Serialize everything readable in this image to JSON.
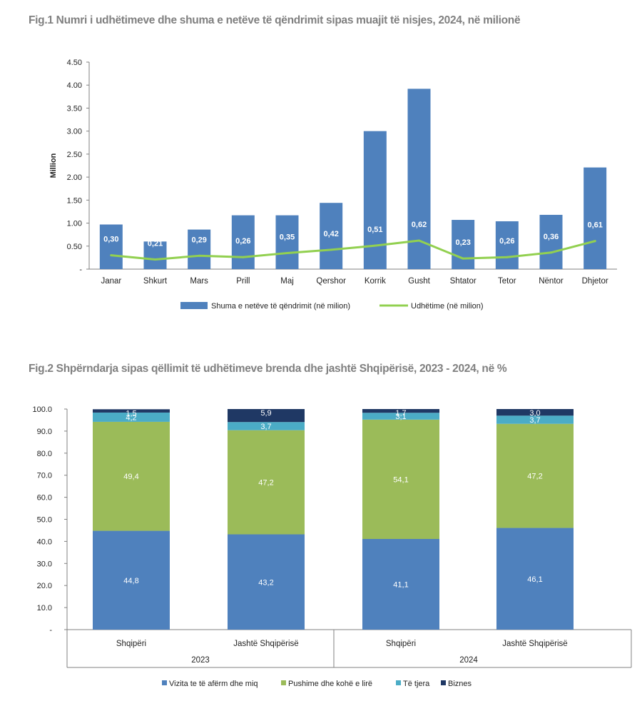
{
  "chart_data": [
    {
      "type": "bar",
      "title": "Fig.1 Numri i udhëtimeve dhe shuma e netëve të qëndrimit sipas muajit të nisjes, 2024, në milionë",
      "ylabel": "Million",
      "ylim": [
        0,
        4.5
      ],
      "yticks": [
        "-",
        "0.50",
        "1.00",
        "1.50",
        "2.00",
        "2.50",
        "3.00",
        "3.50",
        "4.00",
        "4.50"
      ],
      "categories": [
        "Janar",
        "Shkurt",
        "Mars",
        "Prill",
        "Maj",
        "Qershor",
        "Korrik",
        "Gusht",
        "Shtator",
        "Tetor",
        "Nëntor",
        "Dhjetor"
      ],
      "series": [
        {
          "name": "Shuma e netëve të qëndrimit (në milion)",
          "kind": "bar",
          "color": "#4f81bd",
          "values": [
            0.97,
            0.6,
            0.86,
            1.17,
            1.17,
            1.44,
            3.0,
            3.92,
            1.07,
            1.04,
            1.18,
            2.21
          ]
        },
        {
          "name": "Udhëtime (në milion)",
          "kind": "line",
          "color": "#92d050",
          "values": [
            0.3,
            0.21,
            0.29,
            0.26,
            0.35,
            0.42,
            0.51,
            0.62,
            0.23,
            0.26,
            0.36,
            0.61
          ],
          "labels": [
            "0,30",
            "0,21",
            "0,29",
            "0,26",
            "0,35",
            "0,42",
            "0,51",
            "0,62",
            "0,23",
            "0,26",
            "0,36",
            "0,61"
          ]
        }
      ],
      "legend": "bottom"
    },
    {
      "type": "bar",
      "stacked": true,
      "title": "Fig.2 Shpërndarja sipas qëllimit të udhëtimeve brenda dhe jashtë Shqipërisë, 2023 - 2024, në %",
      "ylim": [
        0,
        100
      ],
      "yticks": [
        "-",
        "10.0",
        "20.0",
        "30.0",
        "40.0",
        "50.0",
        "60.0",
        "70.0",
        "80.0",
        "90.0",
        "100.0"
      ],
      "categories": [
        "Shqipëri",
        "Jashtë Shqipërisë",
        "Shqipëri",
        "Jashtë Shqipërisë"
      ],
      "groups": [
        "2023",
        "2024"
      ],
      "series": [
        {
          "name": "Vizita te të afërm dhe miq",
          "color": "#4f81bd",
          "values": [
            44.8,
            43.2,
            41.1,
            46.1
          ],
          "labels": [
            "44,8",
            "43,2",
            "41,1",
            "46,1"
          ]
        },
        {
          "name": "Pushime dhe kohë e lirë",
          "color": "#9bbb59",
          "values": [
            49.4,
            47.2,
            54.1,
            47.2
          ],
          "labels": [
            "49,4",
            "47,2",
            "54,1",
            "47,2"
          ]
        },
        {
          "name": "Të tjera",
          "color": "#4bacc6",
          "values": [
            4.2,
            3.7,
            3.1,
            3.7
          ],
          "labels": [
            "4,2",
            "3,7",
            "3,1",
            "3,7"
          ]
        },
        {
          "name": "Biznes",
          "color": "#1f3864",
          "values": [
            1.5,
            5.9,
            1.7,
            3.0
          ],
          "labels": [
            "1,5",
            "5,9",
            "1,7",
            "3,0"
          ]
        }
      ],
      "legend": "bottom"
    }
  ]
}
